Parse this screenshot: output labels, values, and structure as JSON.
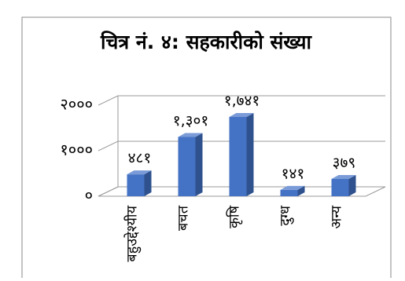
{
  "chart_data": {
    "type": "bar",
    "title": "चित्र नं. ४: सहकारीको संख्या",
    "categories": [
      "बहुउद्देश्यीय",
      "बचत",
      "कृषि",
      "दुग्ध",
      "अन्य"
    ],
    "values": [
      481,
      1301,
      1741,
      141,
      379
    ],
    "value_labels": [
      "४८१",
      "१,३०१",
      "१,७४१",
      "१४१",
      "३७९"
    ],
    "color": "#4472c4",
    "ylim": [
      0,
      2000
    ],
    "yticks": [
      {
        "value": 0,
        "label": "०"
      },
      {
        "value": 1000,
        "label": "१०००"
      },
      {
        "value": 2000,
        "label": "२०००"
      }
    ],
    "grid": true
  }
}
